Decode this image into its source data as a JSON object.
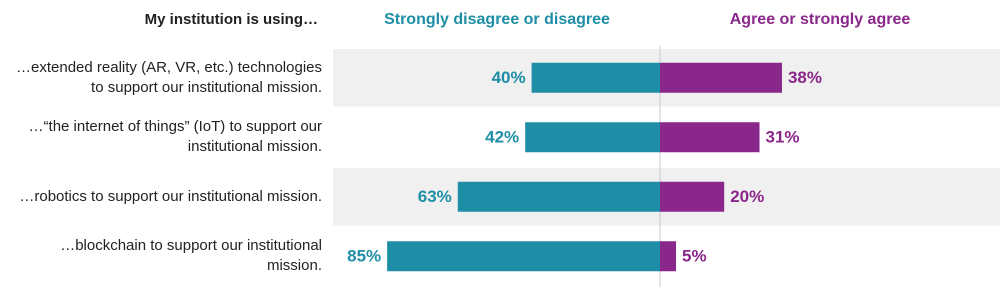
{
  "chart_data": {
    "type": "diverging_bar",
    "title": "My institution is using…",
    "categories": [
      "…extended reality (AR, VR, etc.) technologies to support our institutional mission.",
      "…“the internet of things” (IoT) to support our institutional mission.",
      "…robotics to support our institutional mission.",
      "…blockchain to support our institutional mission."
    ],
    "series": [
      {
        "name": "Strongly disagree or disagree",
        "color": "#1e8ea6",
        "direction": "left",
        "values": [
          40,
          42,
          63,
          85
        ],
        "value_labels": [
          "40%",
          "42%",
          "63%",
          "85%"
        ]
      },
      {
        "name": "Agree or strongly agree",
        "color": "#8a278a",
        "direction": "right",
        "values": [
          38,
          31,
          20,
          5
        ],
        "value_labels": [
          "38%",
          "31%",
          "20%",
          "5%"
        ]
      }
    ]
  }
}
